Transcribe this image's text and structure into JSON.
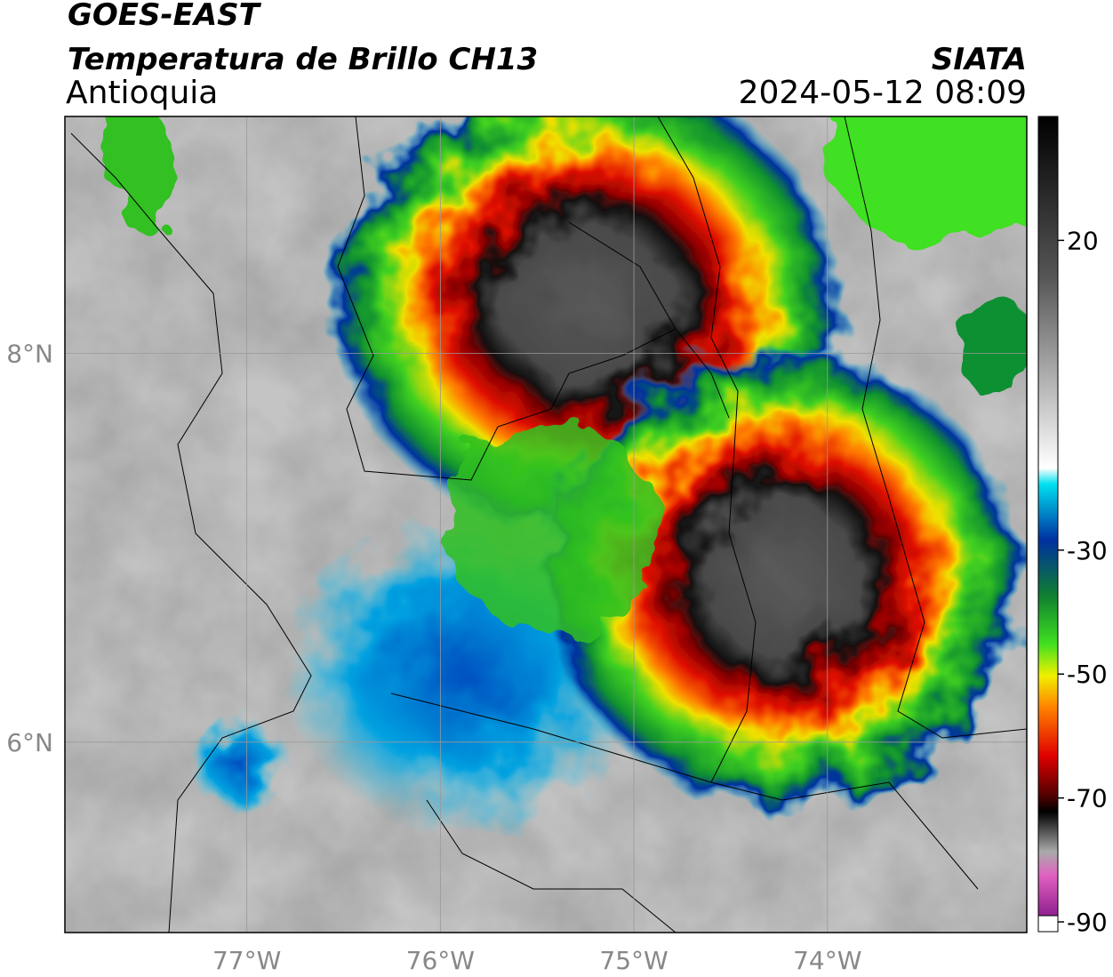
{
  "header": {
    "satellite": "GOES-EAST",
    "product": "Temperatura de Brillo CH13",
    "region": "Antioquia",
    "agency": "SIATA",
    "datetime": "2024-05-12 08:09"
  },
  "map": {
    "latlim": [
      5.02,
      9.22
    ],
    "lonlim": [
      -77.94,
      -72.97
    ],
    "lat_ticks": [
      {
        "value": 8,
        "label": "8°N"
      },
      {
        "value": 6,
        "label": "6°N"
      }
    ],
    "lon_ticks": [
      {
        "value": -77,
        "label": "77°W"
      },
      {
        "value": -76,
        "label": "76°W"
      },
      {
        "value": -75,
        "label": "75°W"
      },
      {
        "value": -74,
        "label": "74°W"
      }
    ]
  },
  "colorbar": {
    "lim": [
      -90,
      40
    ],
    "ticks": [
      20,
      -30,
      -50,
      -70,
      -90
    ]
  }
}
